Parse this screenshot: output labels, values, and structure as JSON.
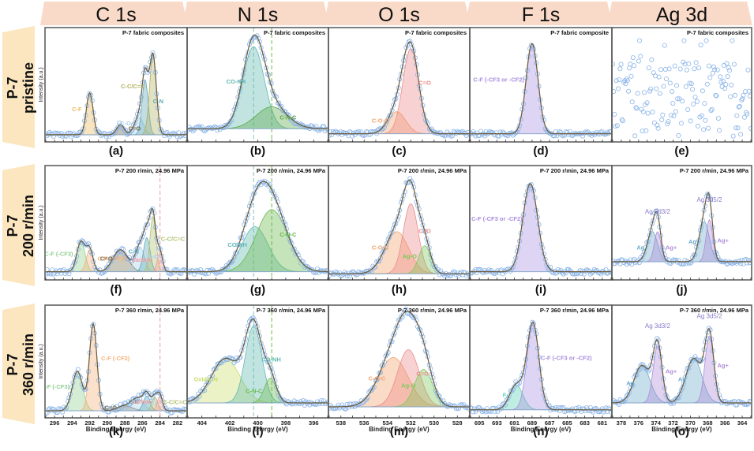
{
  "figure": {
    "column_headers": [
      "C 1s",
      "N 1s",
      "O 1s",
      "F 1s",
      "Ag 3d"
    ],
    "row_headers": [
      {
        "line1": "P-7",
        "line2": "pristine"
      },
      {
        "line1": "P-7",
        "line2": "200 r/min"
      },
      {
        "line1": "P-7",
        "line2": "360 r/min"
      }
    ],
    "ylabel": "Intensity (a.u.)",
    "xlabel": "Binding Energy (eV)",
    "colors": {
      "header_fill": "#f9d9c8",
      "row_fill": "#fbe6bf",
      "data_point": "#8ab4e8",
      "envelope": "#6b5a3a",
      "border": "#555555"
    }
  },
  "chart_data": [
    {
      "type": "line",
      "panel_label": "(a)",
      "row": 0,
      "col": 0,
      "annotation": "P-7 fabric composites",
      "xlim": [
        297,
        281
      ],
      "xticks": [
        296,
        294,
        292,
        290,
        288,
        286,
        284,
        282
      ],
      "show_xticklabels": false,
      "baseline": 0.04,
      "peaks": [
        {
          "name": "C-F",
          "center": 292.0,
          "height": 0.42,
          "fwhm": 0.9,
          "color": "#f0b95a"
        },
        {
          "name": "C=O",
          "center": 288.5,
          "height": 0.1,
          "fwhm": 1.0,
          "color": "#6e6240"
        },
        {
          "name": "C-O",
          "center": 286.4,
          "height": 0.18,
          "fwhm": 1.2,
          "color": "#a9cfe8"
        },
        {
          "name": "C-N",
          "center": 285.7,
          "height": 0.55,
          "fwhm": 0.8,
          "color": "#5ea8b8"
        },
        {
          "name": "C-C/C=C",
          "center": 284.8,
          "height": 0.8,
          "fwhm": 0.9,
          "color": "#b0b060"
        }
      ],
      "dashed_lines": []
    },
    {
      "type": "line",
      "panel_label": "(b)",
      "row": 0,
      "col": 1,
      "annotation": "P-7 fabric composites",
      "xlim": [
        405,
        395
      ],
      "xticks": [
        404,
        402,
        400,
        398,
        396
      ],
      "show_xticklabels": false,
      "baseline": 0.1,
      "peaks": [
        {
          "name": "CO-NH",
          "center": 400.3,
          "height": 0.82,
          "fwhm": 1.8,
          "color": "#5fb8b0"
        },
        {
          "name": "C-N-C",
          "center": 399.0,
          "height": 0.22,
          "fwhm": 2.6,
          "color": "#5aa845"
        }
      ],
      "dashed_lines": [
        {
          "x": 400.3,
          "color": "#9fd3c7"
        },
        {
          "x": 399.0,
          "color": "#8ccf6a"
        }
      ]
    },
    {
      "type": "line",
      "panel_label": "(c)",
      "row": 0,
      "col": 2,
      "annotation": "P-7 fabric composites",
      "xlim": [
        539,
        527
      ],
      "xticks": [
        538,
        536,
        534,
        532,
        530,
        528
      ],
      "show_xticklabels": false,
      "baseline": 0.05,
      "peaks": [
        {
          "name": "C-O-C",
          "center": 533.2,
          "height": 0.22,
          "fwhm": 1.8,
          "color": "#f2a06a"
        },
        {
          "name": "C=O",
          "center": 532.0,
          "height": 0.85,
          "fwhm": 1.6,
          "color": "#ec8a8a"
        }
      ],
      "dashed_lines": []
    },
    {
      "type": "line",
      "panel_label": "(d)",
      "row": 0,
      "col": 3,
      "annotation": "P-7 fabric composite",
      "xlim": [
        696,
        680
      ],
      "xticks": [
        695,
        693,
        691,
        689,
        687,
        685,
        683,
        681
      ],
      "show_xticklabels": false,
      "baseline": 0.05,
      "peaks": [
        {
          "name": "C-F (-CF3 or -CF2)",
          "center": 689.0,
          "height": 0.9,
          "fwhm": 1.6,
          "color": "#a98ee0"
        }
      ],
      "dashed_lines": []
    },
    {
      "type": "scatter",
      "panel_label": "(e)",
      "row": 0,
      "col": 4,
      "annotation": "P-7   fabric composites",
      "xlim": [
        379,
        363
      ],
      "xticks": [
        378,
        376,
        374,
        372,
        370,
        368,
        366,
        364
      ],
      "show_xticklabels": false,
      "baseline": 0.4,
      "noise_only": true,
      "peaks": [],
      "dashed_lines": []
    },
    {
      "type": "line",
      "panel_label": "(f)",
      "row": 1,
      "col": 0,
      "annotation": "P-7   200 r/min, 24.96 MPa",
      "xlim": [
        297,
        281
      ],
      "xticks": [
        296,
        294,
        292,
        290,
        288,
        286,
        284,
        282
      ],
      "show_xticklabels": false,
      "baseline": 0.05,
      "peaks": [
        {
          "name": "C-F (-CF3)",
          "center": 293.0,
          "height": 0.3,
          "fwhm": 1.1,
          "color": "#8fcf8f"
        },
        {
          "name": "C-F (-CF2)",
          "center": 292.0,
          "height": 0.22,
          "fwhm": 0.9,
          "color": "#f5b078"
        },
        {
          "name": "C=O",
          "center": 288.5,
          "height": 0.22,
          "fwhm": 2.0,
          "color": "#7a7458"
        },
        {
          "name": "C-O",
          "center": 286.3,
          "height": 0.25,
          "fwhm": 1.2,
          "color": "#a9cfe8"
        },
        {
          "name": "C-N",
          "center": 285.5,
          "height": 0.34,
          "fwhm": 0.9,
          "color": "#5ea8b8"
        },
        {
          "name": "C-C/C=C",
          "center": 284.8,
          "height": 0.55,
          "fwhm": 0.8,
          "color": "#b0c070"
        },
        {
          "name": "Carbon",
          "center": 284.0,
          "height": 0.2,
          "fwhm": 0.7,
          "color": "#f29a9a"
        }
      ],
      "dashed_lines": [
        {
          "x": 284.0,
          "color": "#f5b0b0"
        }
      ]
    },
    {
      "type": "line",
      "panel_label": "(g)",
      "row": 1,
      "col": 1,
      "annotation": "P-7   200 r/min, 24.96 MPa",
      "xlim": [
        405,
        395
      ],
      "xticks": [
        404,
        402,
        400,
        398,
        396
      ],
      "show_xticklabels": false,
      "baseline": 0.05,
      "peaks": [
        {
          "name": "CO-NH",
          "center": 400.2,
          "height": 0.45,
          "fwhm": 2.2,
          "color": "#5fb8b0"
        },
        {
          "name": "C-N-C",
          "center": 399.0,
          "height": 0.62,
          "fwhm": 2.6,
          "color": "#6ab84a"
        }
      ],
      "dashed_lines": [
        {
          "x": 400.3,
          "color": "#9fd3c7"
        },
        {
          "x": 399.0,
          "color": "#8ccf6a"
        }
      ]
    },
    {
      "type": "line",
      "panel_label": "(h)",
      "row": 1,
      "col": 2,
      "annotation": "P-7   200 r/min, 24.96 MPa",
      "xlim": [
        539,
        527
      ],
      "xticks": [
        538,
        536,
        534,
        532,
        530,
        528
      ],
      "show_xticklabels": false,
      "baseline": 0.03,
      "peaks": [
        {
          "name": "C-O-C",
          "center": 533.2,
          "height": 0.42,
          "fwhm": 2.4,
          "color": "#f2a06a"
        },
        {
          "name": "C=O",
          "center": 532.0,
          "height": 0.7,
          "fwhm": 1.5,
          "color": "#ec8a8a"
        },
        {
          "name": "Ag-O",
          "center": 530.8,
          "height": 0.28,
          "fwhm": 1.2,
          "color": "#7cc85a"
        }
      ],
      "dashed_lines": []
    },
    {
      "type": "line",
      "panel_label": "(i)",
      "row": 1,
      "col": 3,
      "annotation": "P-7 200 r/min, 24.96 MPa",
      "xlim": [
        696,
        680
      ],
      "xticks": [
        695,
        693,
        691,
        689,
        687,
        685,
        683,
        681
      ],
      "show_xticklabels": false,
      "baseline": 0.05,
      "peaks": [
        {
          "name": "C-F (-CF3 or -CF2)",
          "center": 689.2,
          "height": 0.88,
          "fwhm": 2.0,
          "color": "#a98ee0"
        }
      ],
      "dashed_lines": []
    },
    {
      "type": "line",
      "panel_label": "(j)",
      "row": 1,
      "col": 4,
      "annotation": "P-7   200 r/min, 24.96 MPa",
      "xlim": [
        379,
        363
      ],
      "xticks": [
        378,
        376,
        374,
        372,
        370,
        368,
        366,
        364
      ],
      "show_xticklabels": false,
      "baseline": 0.15,
      "peaks": [
        {
          "name": "Ag",
          "center": 374.4,
          "height": 0.3,
          "fwhm": 1.4,
          "color": "#6aaac8"
        },
        {
          "name": "Ag+",
          "center": 373.8,
          "height": 0.3,
          "fwhm": 0.9,
          "color": "#b08ad8"
        },
        {
          "name": "Ag",
          "center": 368.4,
          "height": 0.4,
          "fwhm": 1.4,
          "color": "#6aaac8"
        },
        {
          "name": "Ag+",
          "center": 367.8,
          "height": 0.42,
          "fwhm": 0.9,
          "color": "#b08ad8"
        }
      ],
      "peak_labels": [
        "Ag 3d3/2",
        "Ag 3d5/2"
      ],
      "dashed_lines": []
    },
    {
      "type": "line",
      "panel_label": "(k)",
      "row": 2,
      "col": 0,
      "annotation": "P-7   360 r/min, 24.96 MPa",
      "xlim": [
        297,
        281
      ],
      "xticks": [
        296,
        294,
        292,
        290,
        288,
        286,
        284,
        282
      ],
      "show_xticklabels": true,
      "baseline": 0.04,
      "peaks": [
        {
          "name": "C-F (-CF3)",
          "center": 293.4,
          "height": 0.4,
          "fwhm": 1.4,
          "color": "#8fcf8f"
        },
        {
          "name": "C-F (-CF2)",
          "center": 291.6,
          "height": 0.88,
          "fwhm": 1.0,
          "color": "#f5b078"
        },
        {
          "name": "C=O",
          "center": 288.0,
          "height": 0.05,
          "fwhm": 2.0,
          "color": "#7a7458"
        },
        {
          "name": "C-O",
          "center": 286.5,
          "height": 0.12,
          "fwhm": 1.6,
          "color": "#a9cfe8"
        },
        {
          "name": "C-N",
          "center": 285.5,
          "height": 0.15,
          "fwhm": 0.9,
          "color": "#5ea8b8"
        },
        {
          "name": "C-C/C=C",
          "center": 284.6,
          "height": 0.14,
          "fwhm": 0.8,
          "color": "#b0c070"
        },
        {
          "name": "Carbon",
          "center": 284.0,
          "height": 0.15,
          "fwhm": 0.7,
          "color": "#f29a9a"
        }
      ],
      "dashed_lines": [
        {
          "x": 284.0,
          "color": "#f5b0b0"
        }
      ]
    },
    {
      "type": "line",
      "panel_label": "(l)",
      "row": 2,
      "col": 1,
      "annotation": "P-7   360 r/min, 24.96 MPa",
      "xlim": [
        405,
        395
      ],
      "xticks": [
        404,
        402,
        400,
        398,
        396
      ],
      "show_xticklabels": true,
      "baseline": 0.12,
      "peaks": [
        {
          "name": "Oxidic N",
          "center": 402.3,
          "height": 0.45,
          "fwhm": 2.4,
          "color": "#c8dc6a"
        },
        {
          "name": "CO-NH",
          "center": 400.3,
          "height": 0.78,
          "fwhm": 1.4,
          "color": "#5fb8b0"
        },
        {
          "name": "C-N-C",
          "center": 399.1,
          "height": 0.25,
          "fwhm": 1.0,
          "color": "#6ab84a"
        }
      ],
      "dashed_lines": [
        {
          "x": 400.3,
          "color": "#9fd3c7"
        },
        {
          "x": 399.0,
          "color": "#8ccf6a"
        }
      ]
    },
    {
      "type": "line",
      "panel_label": "(m)",
      "row": 2,
      "col": 2,
      "annotation": "P-7   360 r/min, 24.96 MPa",
      "xlim": [
        539,
        527
      ],
      "xticks": [
        538,
        536,
        534,
        532,
        530,
        528
      ],
      "show_xticklabels": true,
      "baseline": 0.08,
      "peaks": [
        {
          "name": "C-O-C",
          "center": 533.5,
          "height": 0.5,
          "fwhm": 3.0,
          "color": "#f2a06a"
        },
        {
          "name": "C=O",
          "center": 532.2,
          "height": 0.58,
          "fwhm": 2.2,
          "color": "#ec8a8a"
        },
        {
          "name": "Ag-O",
          "center": 530.9,
          "height": 0.38,
          "fwhm": 1.8,
          "color": "#7cc85a"
        }
      ],
      "dashed_lines": []
    },
    {
      "type": "line",
      "panel_label": "(n)",
      "row": 2,
      "col": 3,
      "annotation": "P-7 360 r/min, 24.96 MPa",
      "xlim": [
        696,
        680
      ],
      "xticks": [
        695,
        693,
        691,
        689,
        687,
        685,
        683,
        681
      ],
      "show_xticklabels": true,
      "baseline": 0.05,
      "peaks": [
        {
          "name": "F-",
          "center": 690.8,
          "height": 0.25,
          "fwhm": 1.8,
          "color": "#5ad0b0"
        },
        {
          "name": "C-F (-CF3 or -CF2)",
          "center": 688.9,
          "height": 0.88,
          "fwhm": 1.6,
          "color": "#a98ee0"
        }
      ],
      "dashed_lines": []
    },
    {
      "type": "line",
      "panel_label": "(o)",
      "row": 2,
      "col": 4,
      "annotation": "P-7   360 r/min, 24.96 MPa",
      "xlim": [
        379,
        363
      ],
      "xticks": [
        378,
        376,
        374,
        372,
        370,
        368,
        366,
        364
      ],
      "show_xticklabels": true,
      "baseline": 0.12,
      "peaks": [
        {
          "name": "Ag",
          "center": 375.6,
          "height": 0.38,
          "fwhm": 2.2,
          "color": "#6aaac8"
        },
        {
          "name": "Ag+",
          "center": 373.8,
          "height": 0.58,
          "fwhm": 1.2,
          "color": "#b08ad8"
        },
        {
          "name": "Ag",
          "center": 369.6,
          "height": 0.45,
          "fwhm": 2.2,
          "color": "#6aaac8"
        },
        {
          "name": "Ag+",
          "center": 367.8,
          "height": 0.68,
          "fwhm": 1.2,
          "color": "#b08ad8"
        }
      ],
      "peak_labels": [
        "Ag 3d3/2",
        "Ag 3d5/2"
      ],
      "dashed_lines": []
    }
  ]
}
